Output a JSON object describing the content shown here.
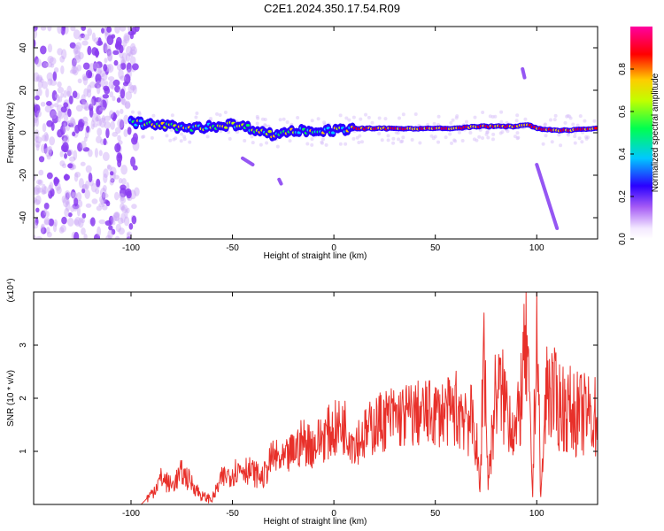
{
  "title": "C2E1.2024.350.17.54.R09",
  "chart_data": [
    {
      "type": "heatmap",
      "xlabel": "Height of straight line (km)",
      "ylabel": "Frequency (Hz)",
      "xlim": [
        -148,
        130
      ],
      "ylim": [
        -50,
        50
      ],
      "xticks": [
        -100,
        -50,
        0,
        50,
        100
      ],
      "yticks": [
        -40,
        -20,
        0,
        20,
        40
      ],
      "grid": false,
      "colorbar": {
        "label": "Normalized spectral amplitude",
        "range": [
          0,
          1
        ],
        "ticks": [
          "0.0",
          "0.2",
          "0.4",
          "0.6",
          "0.8"
        ],
        "colors": [
          "#ffffff",
          "#f3e8ff",
          "#a65cf5",
          "#2a00ff",
          "#00c8ff",
          "#00ff50",
          "#c0ff00",
          "#ffcc00",
          "#ff0000",
          "#ff00a0"
        ]
      },
      "ridge": {
        "x": [
          -100,
          -90,
          -80,
          -70,
          -60,
          -50,
          -40,
          -30,
          -25,
          -20,
          -10,
          0,
          10,
          20,
          40,
          60,
          70,
          80,
          90,
          95,
          100,
          110,
          130
        ],
        "y": [
          5,
          4,
          3,
          2,
          3,
          4,
          2,
          -1,
          0,
          1,
          1,
          1,
          2,
          2,
          2,
          2,
          3,
          3,
          3,
          4,
          2,
          1,
          2
        ]
      },
      "streaks": [
        {
          "x": [
            -45,
            -40
          ],
          "y": [
            -12,
            -15
          ]
        },
        {
          "x": [
            -27,
            -26
          ],
          "y": [
            -22,
            -24
          ]
        },
        {
          "x": [
            93,
            94
          ],
          "y": [
            30,
            26
          ]
        },
        {
          "x": [
            100,
            110
          ],
          "y": [
            -15,
            -45
          ]
        }
      ],
      "noise_region_x": [
        -148,
        -100
      ]
    },
    {
      "type": "line",
      "xlabel": "Height of straight line (km)",
      "ylabel": "SNR (10 * v/v)",
      "multiplier": "(x10⁴)",
      "xlim": [
        -148,
        130
      ],
      "ylim": [
        0,
        4
      ],
      "xticks": [
        -100,
        -50,
        0,
        50,
        100
      ],
      "yticks": [
        1,
        2,
        3
      ],
      "grid": false,
      "color": "#e8302a",
      "x": [
        -148,
        -95,
        -90,
        -85,
        -80,
        -75,
        -70,
        -65,
        -60,
        -55,
        -50,
        -45,
        -40,
        -35,
        -30,
        -25,
        -20,
        -15,
        -10,
        -5,
        0,
        5,
        10,
        15,
        20,
        25,
        30,
        40,
        50,
        60,
        65,
        70,
        72,
        74,
        76,
        80,
        85,
        90,
        95,
        98,
        100,
        102,
        105,
        110,
        115,
        120,
        130
      ],
      "y": [
        0.0,
        0.0,
        0.2,
        0.5,
        0.35,
        0.6,
        0.4,
        0.15,
        0.1,
        0.5,
        0.6,
        0.7,
        0.6,
        0.5,
        0.9,
        0.8,
        1.0,
        1.2,
        1.1,
        1.3,
        1.4,
        1.5,
        1.2,
        1.3,
        1.5,
        1.6,
        1.65,
        1.7,
        1.72,
        1.75,
        1.8,
        1.3,
        0.2,
        3.2,
        0.4,
        2.2,
        1.9,
        1.3,
        3.0,
        0.2,
        3.6,
        0.1,
        2.3,
        1.9,
        1.8,
        1.7,
        1.65
      ]
    }
  ]
}
